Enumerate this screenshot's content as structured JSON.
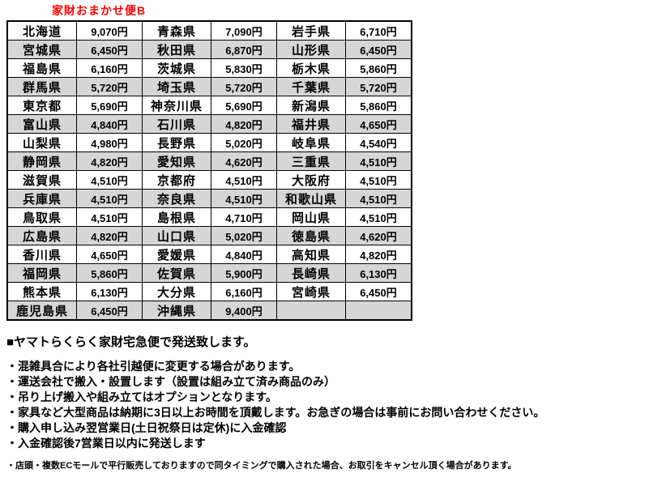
{
  "title": "家財おまかせ便B",
  "colors": {
    "title_red": "#ff0000",
    "row_alt_gray": "#d6d6d6",
    "border": "#000000"
  },
  "table": {
    "rows": [
      [
        "北海道",
        "9,070円",
        "青森県",
        "7,090円",
        "岩手県",
        "6,710円"
      ],
      [
        "宮城県",
        "6,450円",
        "秋田県",
        "6,870円",
        "山形県",
        "6,450円"
      ],
      [
        "福島県",
        "6,160円",
        "茨城県",
        "5,830円",
        "栃木県",
        "5,860円"
      ],
      [
        "群馬県",
        "5,720円",
        "埼玉県",
        "5,720円",
        "千葉県",
        "5,720円"
      ],
      [
        "東京都",
        "5,690円",
        "神奈川県",
        "5,690円",
        "新潟県",
        "5,860円"
      ],
      [
        "富山県",
        "4,840円",
        "石川県",
        "4,820円",
        "福井県",
        "4,650円"
      ],
      [
        "山梨県",
        "4,980円",
        "長野県",
        "5,020円",
        "岐阜県",
        "4,540円"
      ],
      [
        "静岡県",
        "4,820円",
        "愛知県",
        "4,620円",
        "三重県",
        "4,510円"
      ],
      [
        "滋賀県",
        "4,510円",
        "京都府",
        "4,510円",
        "大阪府",
        "4,510円"
      ],
      [
        "兵庫県",
        "4,510円",
        "奈良県",
        "4,510円",
        "和歌山県",
        "4,510円"
      ],
      [
        "鳥取県",
        "4,510円",
        "島根県",
        "4,710円",
        "岡山県",
        "4,510円"
      ],
      [
        "広島県",
        "4,820円",
        "山口県",
        "5,020円",
        "徳島県",
        "4,620円"
      ],
      [
        "香川県",
        "4,650円",
        "愛媛県",
        "4,840円",
        "高知県",
        "4,820円"
      ],
      [
        "福岡県",
        "5,860円",
        "佐賀県",
        "5,900円",
        "長崎県",
        "6,130円"
      ],
      [
        "熊本県",
        "6,130円",
        "大分県",
        "6,160円",
        "宮崎県",
        "6,450円"
      ],
      [
        "鹿児島県",
        "6,450円",
        "沖縄県",
        "9,400円",
        "",
        ""
      ]
    ]
  },
  "notes": {
    "heading": "■ヤマトらくらく家財宅急便で発送致します。",
    "bullets": [
      "・混雑具合により各社引越便に変更する場合があります。",
      "・運送会社で搬入・設置します（設置は組み立て済み商品のみ）",
      "・吊り上げ搬入や組み立てはオプションとなります。",
      "・家具など大型商品は納期に3日以上お時間を頂戴します。お急ぎの場合は事前にお問い合わせください。",
      "・購入申し込み翌営業日(土日祝祭日は定休)に入金確認",
      "・入金確認後7営業日以内に発送します"
    ],
    "footnote": "・店頭・複数ECモールで平行販売しておりますので同タイミングで購入された場合、お取引をキャンセル頂く場合があります。"
  }
}
